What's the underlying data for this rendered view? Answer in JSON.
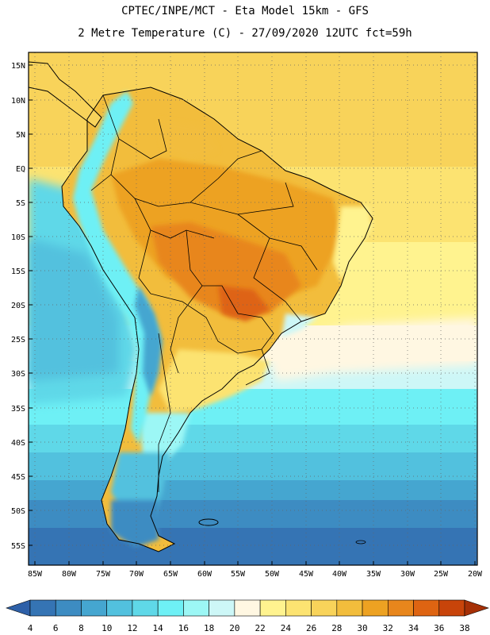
{
  "header": {
    "line1": "CPTEC/INPE/MCT  -   Eta Model 15km  -  GFS",
    "line2": "2 Metre Temperature (C) - 27/09/2020 12UTC fct=59h"
  },
  "map": {
    "lat_labels": [
      "15N",
      "10N",
      "5N",
      "EQ",
      "5S",
      "10S",
      "15S",
      "20S",
      "25S",
      "30S",
      "35S",
      "40S",
      "45S",
      "50S",
      "55S"
    ],
    "lon_labels": [
      "85W",
      "80W",
      "75W",
      "70W",
      "65W",
      "60W",
      "55W",
      "50W",
      "45W",
      "40W",
      "35W",
      "30W",
      "25W",
      "20W"
    ]
  },
  "colorbar": {
    "values": [
      "4",
      "6",
      "8",
      "10",
      "12",
      "14",
      "16",
      "18",
      "20",
      "22",
      "24",
      "26",
      "28",
      "30",
      "32",
      "34",
      "36",
      "38"
    ],
    "colors": [
      "#2e60a8",
      "#3574b4",
      "#3d8cc2",
      "#45a6d0",
      "#52c1de",
      "#5fd8e8",
      "#6ef0f5",
      "#9cf7f5",
      "#cdf7f7",
      "#fff7e2",
      "#fff38f",
      "#fce371",
      "#f8d35a",
      "#f2bd3c",
      "#eda222",
      "#e8861c",
      "#de6412",
      "#c8440a",
      "#a63006"
    ]
  }
}
